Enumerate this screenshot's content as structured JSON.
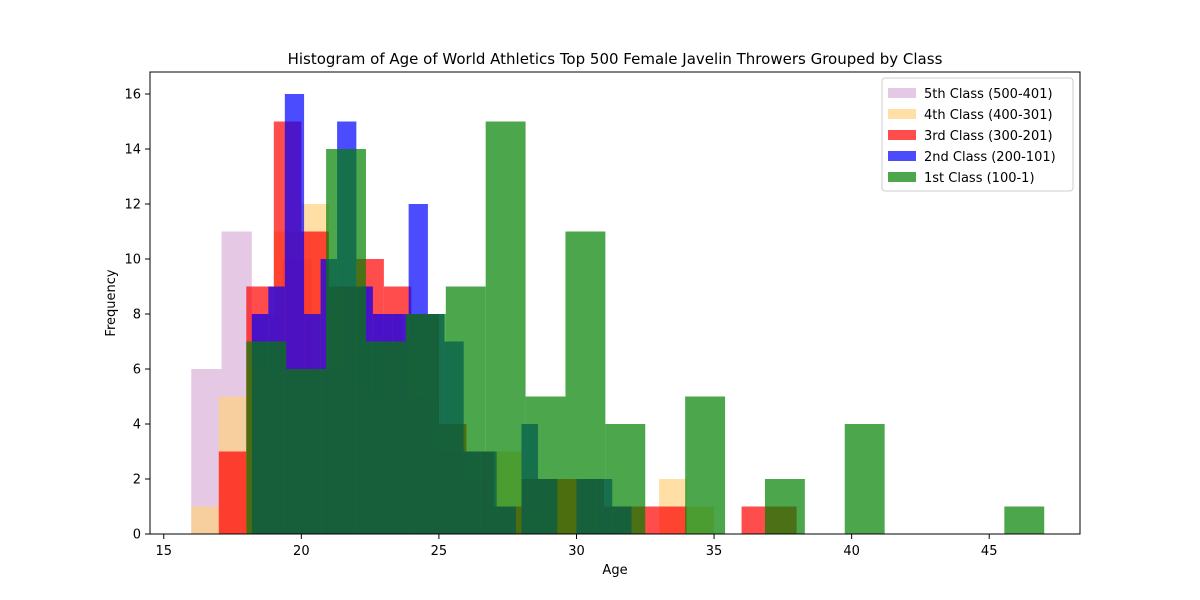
{
  "chart_data": {
    "type": "bar",
    "title": "Histogram of Age of World Athletics Top 500 Female Javelin Throwers Grouped by Class",
    "xlabel": "Age",
    "ylabel": "Frequency",
    "xlim": [
      14.5,
      48.3
    ],
    "ylim": [
      0,
      16.8
    ],
    "xticks": [
      15,
      20,
      25,
      30,
      35,
      40,
      45
    ],
    "yticks": [
      0,
      2,
      4,
      6,
      8,
      10,
      12,
      14,
      16
    ],
    "grid": false,
    "legend_position": "top-right",
    "bar_opacity": 0.7,
    "series": [
      {
        "name": "5th Class (500-401)",
        "color": "#d8b0d8",
        "bins": [
          {
            "x0": 16.0,
            "x1": 17.1,
            "count": 6
          },
          {
            "x0": 17.1,
            "x1": 18.2,
            "count": 11
          },
          {
            "x0": 18.2,
            "x1": 19.3,
            "count": 8
          },
          {
            "x0": 19.3,
            "x1": 20.4,
            "count": 10
          },
          {
            "x0": 20.4,
            "x1": 21.5,
            "count": 6
          },
          {
            "x0": 21.5,
            "x1": 22.6,
            "count": 9
          },
          {
            "x0": 22.6,
            "x1": 23.7,
            "count": 8
          },
          {
            "x0": 23.7,
            "x1": 24.8,
            "count": 5
          },
          {
            "x0": 24.8,
            "x1": 25.9,
            "count": 3
          },
          {
            "x0": 25.9,
            "x1": 27.0,
            "count": 2
          },
          {
            "x0": 27.0,
            "x1": 28.1,
            "count": 1
          }
        ]
      },
      {
        "name": "4th Class (400-301)",
        "color": "#ffd180",
        "bins": [
          {
            "x0": 16.0,
            "x1": 17.0,
            "count": 1
          },
          {
            "x0": 17.0,
            "x1": 18.0,
            "count": 5
          },
          {
            "x0": 18.0,
            "x1": 19.0,
            "count": 6
          },
          {
            "x0": 19.0,
            "x1": 20.0,
            "count": 11
          },
          {
            "x0": 20.0,
            "x1": 21.0,
            "count": 12
          },
          {
            "x0": 21.0,
            "x1": 22.0,
            "count": 9
          },
          {
            "x0": 22.0,
            "x1": 23.0,
            "count": 5
          },
          {
            "x0": 23.0,
            "x1": 24.0,
            "count": 7
          },
          {
            "x0": 24.0,
            "x1": 25.0,
            "count": 8
          },
          {
            "x0": 25.0,
            "x1": 26.0,
            "count": 4
          },
          {
            "x0": 26.0,
            "x1": 27.0,
            "count": 3
          },
          {
            "x0": 27.0,
            "x1": 28.0,
            "count": 3
          },
          {
            "x0": 28.0,
            "x1": 29.0,
            "count": 1
          },
          {
            "x0": 29.0,
            "x1": 30.0,
            "count": 2
          },
          {
            "x0": 33.0,
            "x1": 34.0,
            "count": 2
          },
          {
            "x0": 34.0,
            "x1": 35.0,
            "count": 1
          }
        ]
      },
      {
        "name": "3rd Class (300-201)",
        "color": "#ff0000",
        "bins": [
          {
            "x0": 17.0,
            "x1": 18.0,
            "count": 3
          },
          {
            "x0": 18.0,
            "x1": 19.0,
            "count": 9
          },
          {
            "x0": 19.0,
            "x1": 20.0,
            "count": 15
          },
          {
            "x0": 20.0,
            "x1": 21.0,
            "count": 11
          },
          {
            "x0": 21.0,
            "x1": 22.0,
            "count": 9
          },
          {
            "x0": 22.0,
            "x1": 23.0,
            "count": 10
          },
          {
            "x0": 23.0,
            "x1": 24.0,
            "count": 9
          },
          {
            "x0": 24.0,
            "x1": 25.0,
            "count": 8
          },
          {
            "x0": 25.0,
            "x1": 26.0,
            "count": 4
          },
          {
            "x0": 26.0,
            "x1": 27.0,
            "count": 3
          },
          {
            "x0": 27.0,
            "x1": 28.0,
            "count": 1
          },
          {
            "x0": 28.0,
            "x1": 29.0,
            "count": 2
          },
          {
            "x0": 29.0,
            "x1": 30.0,
            "count": 2
          },
          {
            "x0": 30.0,
            "x1": 31.0,
            "count": 2
          },
          {
            "x0": 31.0,
            "x1": 32.0,
            "count": 1
          },
          {
            "x0": 32.0,
            "x1": 33.0,
            "count": 1
          },
          {
            "x0": 33.0,
            "x1": 34.0,
            "count": 1
          },
          {
            "x0": 36.0,
            "x1": 37.0,
            "count": 1
          },
          {
            "x0": 37.0,
            "x1": 38.0,
            "count": 1
          }
        ]
      },
      {
        "name": "2nd Class (200-101)",
        "color": "#0000ff",
        "bins": [
          {
            "x0": 18.2,
            "x1": 18.8,
            "count": 8
          },
          {
            "x0": 18.8,
            "x1": 19.4,
            "count": 9
          },
          {
            "x0": 19.4,
            "x1": 20.1,
            "count": 16
          },
          {
            "x0": 20.1,
            "x1": 20.7,
            "count": 8
          },
          {
            "x0": 20.7,
            "x1": 21.3,
            "count": 10
          },
          {
            "x0": 21.3,
            "x1": 22.0,
            "count": 15
          },
          {
            "x0": 22.0,
            "x1": 22.6,
            "count": 9
          },
          {
            "x0": 22.6,
            "x1": 23.3,
            "count": 8
          },
          {
            "x0": 23.3,
            "x1": 23.9,
            "count": 8
          },
          {
            "x0": 23.9,
            "x1": 24.6,
            "count": 12
          },
          {
            "x0": 24.6,
            "x1": 25.2,
            "count": 8
          },
          {
            "x0": 25.2,
            "x1": 25.9,
            "count": 7
          },
          {
            "x0": 25.9,
            "x1": 26.5,
            "count": 3
          },
          {
            "x0": 26.5,
            "x1": 27.1,
            "count": 3
          },
          {
            "x0": 27.1,
            "x1": 27.8,
            "count": 1
          },
          {
            "x0": 28.0,
            "x1": 28.6,
            "count": 4
          },
          {
            "x0": 28.6,
            "x1": 29.3,
            "count": 2
          },
          {
            "x0": 30.0,
            "x1": 30.7,
            "count": 2
          },
          {
            "x0": 30.7,
            "x1": 31.3,
            "count": 2
          },
          {
            "x0": 31.3,
            "x1": 32.0,
            "count": 1
          }
        ]
      },
      {
        "name": "1st Class (100-1)",
        "color": "#008000",
        "bins": [
          {
            "x0": 18.0,
            "x1": 19.45,
            "count": 7
          },
          {
            "x0": 19.45,
            "x1": 20.9,
            "count": 6
          },
          {
            "x0": 20.9,
            "x1": 22.35,
            "count": 14
          },
          {
            "x0": 22.35,
            "x1": 23.8,
            "count": 7
          },
          {
            "x0": 23.8,
            "x1": 25.25,
            "count": 8
          },
          {
            "x0": 25.25,
            "x1": 26.7,
            "count": 9
          },
          {
            "x0": 26.7,
            "x1": 28.15,
            "count": 15
          },
          {
            "x0": 28.15,
            "x1": 29.6,
            "count": 5
          },
          {
            "x0": 29.6,
            "x1": 31.05,
            "count": 11
          },
          {
            "x0": 31.05,
            "x1": 32.5,
            "count": 4
          },
          {
            "x0": 32.5,
            "x1": 33.95,
            "count": 0
          },
          {
            "x0": 33.95,
            "x1": 35.4,
            "count": 5
          },
          {
            "x0": 35.4,
            "x1": 36.85,
            "count": 0
          },
          {
            "x0": 36.85,
            "x1": 38.3,
            "count": 2
          },
          {
            "x0": 38.3,
            "x1": 39.75,
            "count": 0
          },
          {
            "x0": 39.75,
            "x1": 41.2,
            "count": 4
          },
          {
            "x0": 41.2,
            "x1": 42.65,
            "count": 0
          },
          {
            "x0": 42.65,
            "x1": 44.1,
            "count": 0
          },
          {
            "x0": 44.1,
            "x1": 45.55,
            "count": 0
          },
          {
            "x0": 45.55,
            "x1": 47.0,
            "count": 1
          }
        ]
      }
    ]
  }
}
